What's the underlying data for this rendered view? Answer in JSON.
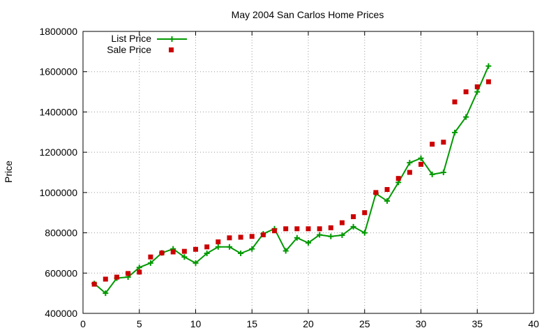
{
  "chart_data": {
    "type": "line",
    "title": "May 2004 San Carlos Home Prices",
    "xlabel": "",
    "ylabel": "Price",
    "xlim": [
      0,
      40
    ],
    "ylim": [
      400000,
      1800000
    ],
    "xticks": [
      0,
      5,
      10,
      15,
      20,
      25,
      30,
      35,
      40
    ],
    "yticks": [
      400000,
      600000,
      800000,
      1000000,
      1200000,
      1400000,
      1600000,
      1800000
    ],
    "grid": true,
    "legend_position": "top-left",
    "x": [
      1,
      2,
      3,
      4,
      5,
      6,
      7,
      8,
      9,
      10,
      11,
      12,
      13,
      14,
      15,
      16,
      17,
      18,
      19,
      20,
      21,
      22,
      23,
      24,
      25,
      26,
      27,
      28,
      29,
      30,
      31,
      32,
      33,
      34,
      35,
      36
    ],
    "series": [
      {
        "name": "List Price",
        "style": "line with plus markers",
        "color": "#009900",
        "values": [
          548000,
          500000,
          575000,
          580000,
          628000,
          650000,
          700000,
          720000,
          680000,
          650000,
          698000,
          730000,
          730000,
          698000,
          720000,
          795000,
          820000,
          710000,
          775000,
          750000,
          790000,
          782000,
          788000,
          830000,
          800000,
          995000,
          958000,
          1050000,
          1148000,
          1170000,
          1090000,
          1100000,
          1298000,
          1375000,
          1500000,
          1628000
        ]
      },
      {
        "name": "Sale Price",
        "style": "square markers",
        "color": "#cc0000",
        "values": [
          545000,
          570000,
          580000,
          598000,
          605000,
          680000,
          700000,
          705000,
          708000,
          718000,
          730000,
          755000,
          775000,
          778000,
          782000,
          790000,
          810000,
          820000,
          820000,
          820000,
          820000,
          825000,
          850000,
          880000,
          900000,
          1000000,
          1015000,
          1070000,
          1100000,
          1140000,
          1240000,
          1250000,
          1450000,
          1500000,
          1525000,
          1550000
        ]
      }
    ]
  }
}
